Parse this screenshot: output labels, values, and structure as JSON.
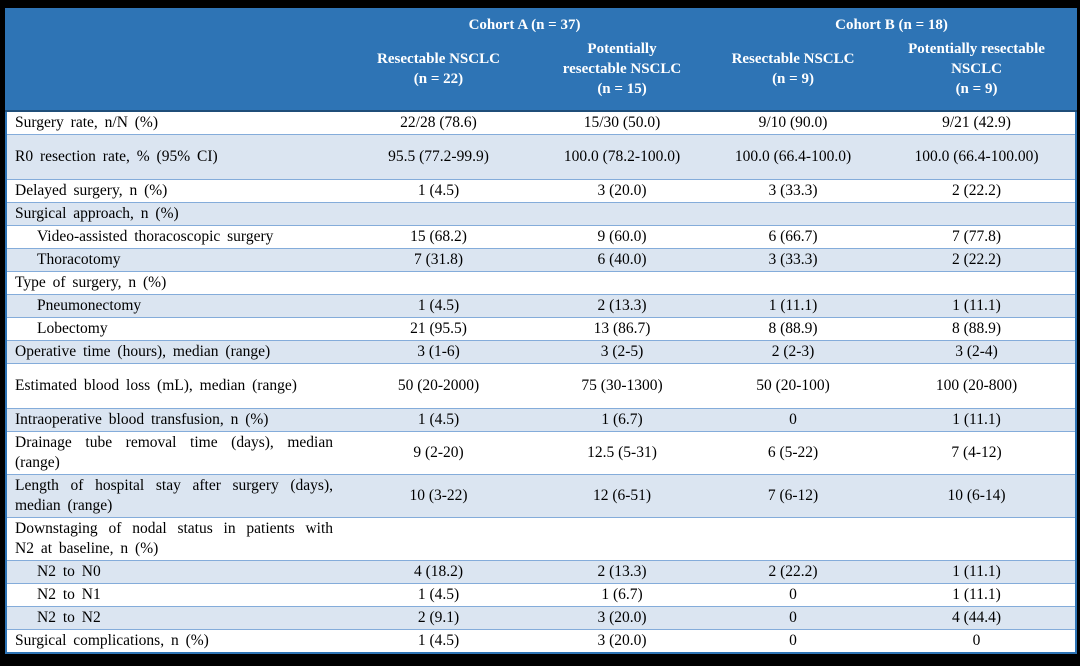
{
  "colors": {
    "header_bg": "#2E74B5",
    "header_text": "#FFFFFF",
    "row_tint": "#DBE5F1",
    "row_border": "#84ACDA",
    "header_divider": "#1F4E79",
    "frame_bg": "#000000"
  },
  "table": {
    "header": {
      "groups": [
        "Cohort A (n = 37)",
        "Cohort B (n = 18)"
      ],
      "columns": [
        "Resectable NSCLC\n(n = 22)",
        "Potentially\nresectable NSCLC\n(n = 15)",
        "Resectable NSCLC\n(n = 9)",
        "Potentially resectable\nNSCLC\n(n = 9)"
      ]
    },
    "rows": [
      {
        "label": "Surgery rate, n/N (%)",
        "indent": false,
        "tall": false,
        "justify": false,
        "values": [
          "22/28 (78.6)",
          "15/30 (50.0)",
          "9/10 (90.0)",
          "9/21 (42.9)"
        ]
      },
      {
        "label": "R0 resection rate, % (95% CI)",
        "indent": false,
        "tall": true,
        "justify": false,
        "values": [
          "95.5 (77.2-99.9)",
          "100.0 (78.2-100.0)",
          "100.0 (66.4-100.0)",
          "100.0 (66.4-100.00)"
        ]
      },
      {
        "label": "Delayed surgery, n (%)",
        "indent": false,
        "tall": false,
        "justify": false,
        "values": [
          "1 (4.5)",
          "3 (20.0)",
          "3 (33.3)",
          "2 (22.2)"
        ]
      },
      {
        "label": "Surgical approach, n (%)",
        "indent": false,
        "tall": false,
        "justify": false,
        "values": [
          "",
          "",
          "",
          ""
        ]
      },
      {
        "label": "Video-assisted thoracoscopic surgery",
        "indent": true,
        "tall": false,
        "justify": false,
        "values": [
          "15 (68.2)",
          "9 (60.0)",
          "6 (66.7)",
          "7 (77.8)"
        ]
      },
      {
        "label": "Thoracotomy",
        "indent": true,
        "tall": false,
        "justify": false,
        "values": [
          "7 (31.8)",
          "6 (40.0)",
          "3 (33.3)",
          "2 (22.2)"
        ]
      },
      {
        "label": "Type of surgery, n (%)",
        "indent": false,
        "tall": false,
        "justify": false,
        "values": [
          "",
          "",
          "",
          ""
        ]
      },
      {
        "label": "Pneumonectomy",
        "indent": true,
        "tall": false,
        "justify": false,
        "values": [
          "1 (4.5)",
          "2 (13.3)",
          "1 (11.1)",
          "1 (11.1)"
        ]
      },
      {
        "label": "Lobectomy",
        "indent": true,
        "tall": false,
        "justify": false,
        "values": [
          "21 (95.5)",
          "13 (86.7)",
          "8 (88.9)",
          "8 (88.9)"
        ]
      },
      {
        "label": "Operative time (hours), median (range)",
        "indent": false,
        "tall": false,
        "justify": false,
        "values": [
          "3 (1-6)",
          "3 (2-5)",
          "2 (2-3)",
          "3 (2-4)"
        ]
      },
      {
        "label": "Estimated blood loss (mL), median (range)",
        "indent": false,
        "tall": true,
        "justify": false,
        "values": [
          "50 (20-2000)",
          "75 (30-1300)",
          "50 (20-100)",
          "100 (20-800)"
        ]
      },
      {
        "label": "Intraoperative blood transfusion, n (%)",
        "indent": false,
        "tall": false,
        "justify": false,
        "values": [
          "1 (4.5)",
          "1 (6.7)",
          "0",
          "1 (11.1)"
        ]
      },
      {
        "label": "Drainage tube removal time (days), median (range)",
        "indent": false,
        "tall": false,
        "justify": true,
        "values": [
          "9 (2-20)",
          "12.5 (5-31)",
          "6 (5-22)",
          "7 (4-12)"
        ]
      },
      {
        "label": "Length of hospital stay after surgery (days), median (range)",
        "indent": false,
        "tall": false,
        "justify": true,
        "values": [
          "10 (3-22)",
          "12 (6-51)",
          "7 (6-12)",
          "10 (6-14)"
        ]
      },
      {
        "label": "Downstaging of nodal status in patients with N2 at baseline, n (%)",
        "indent": false,
        "tall": false,
        "justify": true,
        "values": [
          "",
          "",
          "",
          ""
        ]
      },
      {
        "label": "N2 to N0",
        "indent": true,
        "tall": false,
        "justify": false,
        "values": [
          "4 (18.2)",
          "2 (13.3)",
          "2 (22.2)",
          "1 (11.1)"
        ]
      },
      {
        "label": "N2 to N1",
        "indent": true,
        "tall": false,
        "justify": false,
        "values": [
          "1 (4.5)",
          "1 (6.7)",
          "0",
          "1 (11.1)"
        ]
      },
      {
        "label": "N2 to N2",
        "indent": true,
        "tall": false,
        "justify": false,
        "values": [
          "2 (9.1)",
          "3 (20.0)",
          "0",
          "4 (44.4)"
        ]
      },
      {
        "label": "Surgical complications, n (%)",
        "indent": false,
        "tall": false,
        "justify": false,
        "values": [
          "1 (4.5)",
          "3 (20.0)",
          "0",
          "0"
        ]
      }
    ]
  }
}
